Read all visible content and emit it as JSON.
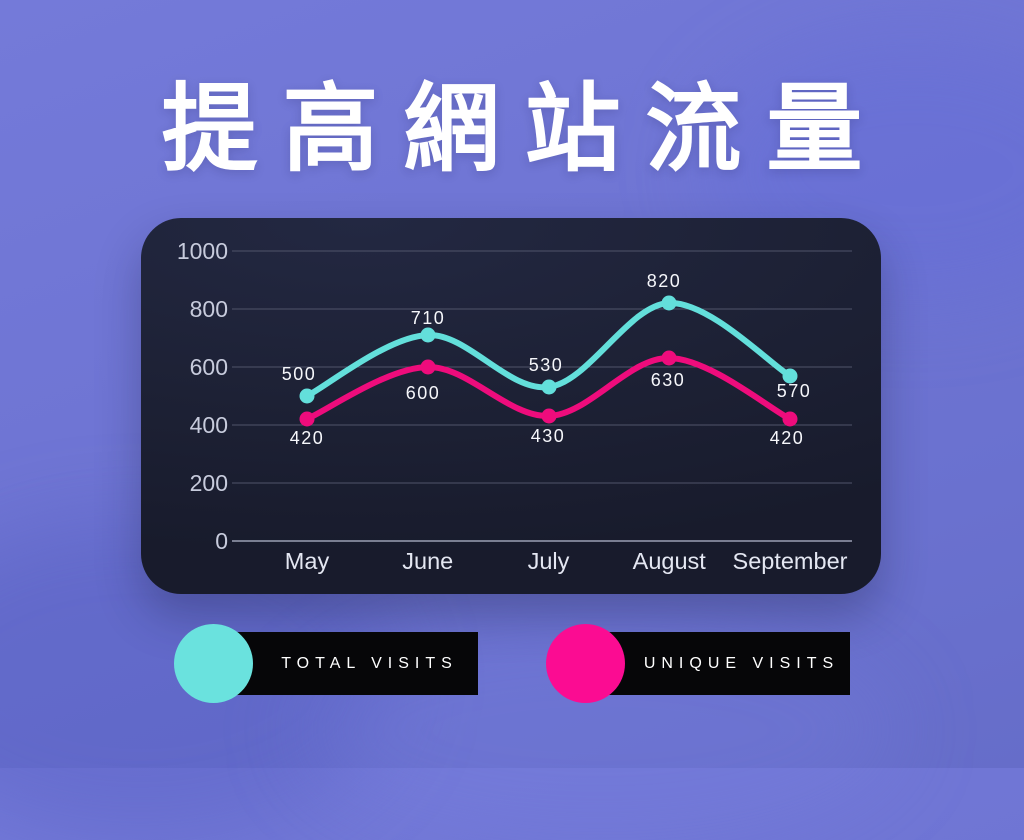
{
  "title": "提高網站流量",
  "chart_data": {
    "type": "line",
    "categories": [
      "May",
      "June",
      "July",
      "August",
      "September"
    ],
    "series": [
      {
        "name": "Total Visits",
        "color": "#63dfdb",
        "values": [
          500,
          710,
          530,
          820,
          570
        ]
      },
      {
        "name": "Unique Visits",
        "color": "#ee0c7c",
        "values": [
          420,
          600,
          430,
          630,
          420
        ]
      }
    ],
    "title": "提高網站流量",
    "xlabel": "",
    "ylabel": "",
    "ylim": [
      0,
      1000
    ],
    "yticks": [
      0,
      200,
      400,
      600,
      800,
      1000
    ],
    "grid": true,
    "legend_position": "bottom",
    "data_labels": true
  },
  "legend": {
    "items": [
      {
        "label": "TOTAL VISITS",
        "swatch_color": "#6ae2de"
      },
      {
        "label": "UNIQUE VISITS",
        "swatch_color": "#fb0c92"
      }
    ]
  },
  "colors": {
    "background": "#6f75d4",
    "panel": "#1d2135",
    "gridline": "#50546a",
    "zero_line": "#9aa0b4",
    "tick_text": "#c7cbdc",
    "category_text": "#e4e7f2",
    "data_label_text": "#f6f7fb",
    "legend_bar": "#060608"
  }
}
